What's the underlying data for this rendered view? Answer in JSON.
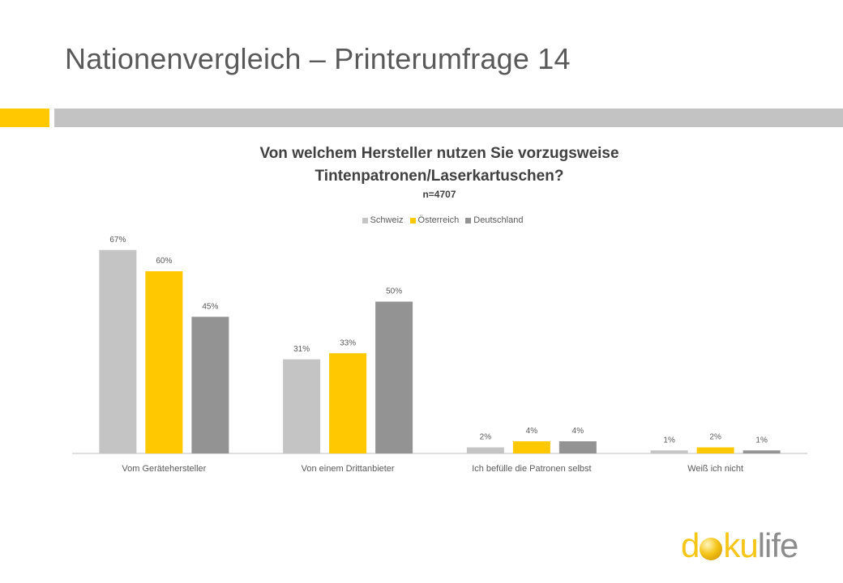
{
  "slide": {
    "title": "Nationenvergleich – Printerumfrage 14"
  },
  "colors": {
    "accent": "#ffc800",
    "rule": "#c3c3c3",
    "schweiz": "#c4c4c4",
    "oesterreich": "#ffc800",
    "deutschland": "#939393",
    "axis": "#bfbfbf",
    "label": "#595959"
  },
  "chart_data": {
    "type": "bar",
    "title_line1": "Von welchem Hersteller nutzen Sie vorzugsweise",
    "title_line2": "Tintenpatronen/Laserkartuschen?",
    "subtitle": "n=4707",
    "categories": [
      "Vom Gerätehersteller",
      "Von einem Drittanbieter",
      "Ich befülle die Patronen selbst",
      "Weiß ich nicht"
    ],
    "series": [
      {
        "name": "Schweiz",
        "values": [
          67,
          31,
          2,
          1
        ],
        "labels": [
          "67%",
          "31%",
          "2%",
          "1%"
        ]
      },
      {
        "name": "Österreich",
        "values": [
          60,
          33,
          4,
          2
        ],
        "labels": [
          "60%",
          "33%",
          "4%",
          "2%"
        ]
      },
      {
        "name": "Deutschland",
        "values": [
          45,
          50,
          4,
          1
        ],
        "labels": [
          "45%",
          "50%",
          "4%",
          "1%"
        ]
      }
    ],
    "ylim": [
      0,
      100
    ],
    "grid": false,
    "legend_position": "top"
  },
  "logo": {
    "d": "d",
    "ku": "ku",
    "life": "life",
    "alt": "dokulife"
  }
}
